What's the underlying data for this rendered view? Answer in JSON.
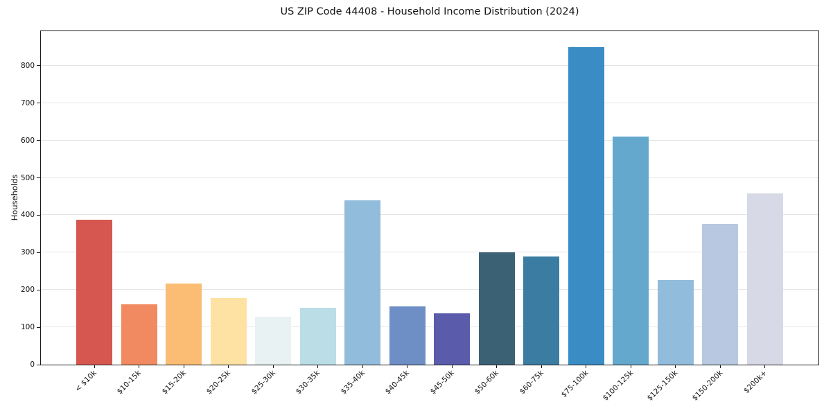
{
  "chart_data": {
    "type": "bar",
    "title": "US ZIP Code 44408 - Household Income Distribution (2024)",
    "xlabel": "",
    "ylabel": "Households",
    "categories": [
      "< $10k",
      "$10-15k",
      "$15-20k",
      "$20-25k",
      "$25-30k",
      "$30-35k",
      "$35-40k",
      "$40-45k",
      "$45-50k",
      "$50-60k",
      "$60-75k",
      "$75-100k",
      "$100-125k",
      "$125-150k",
      "$150-200k",
      "$200k+"
    ],
    "values": [
      387,
      161,
      217,
      178,
      128,
      153,
      440,
      156,
      138,
      301,
      289,
      850,
      610,
      227,
      377,
      459
    ],
    "bar_colors": [
      "#d6574f",
      "#f28a61",
      "#fbbc74",
      "#fde2a3",
      "#e9f2f3",
      "#bbdde6",
      "#92bcdb",
      "#6d8fc6",
      "#5a5bab",
      "#3a6274",
      "#3b7da2",
      "#3a8dc4",
      "#64a8cd",
      "#92bcdb",
      "#b8c8e1",
      "#d8d9e6"
    ],
    "yticks": [
      0,
      100,
      200,
      300,
      400,
      500,
      600,
      700,
      800
    ],
    "ylim": [
      0,
      892.5
    ],
    "grid": "horizontal",
    "legend": "none",
    "plot_background": "#ffffff",
    "gridline_color": "#e5e5e5"
  }
}
